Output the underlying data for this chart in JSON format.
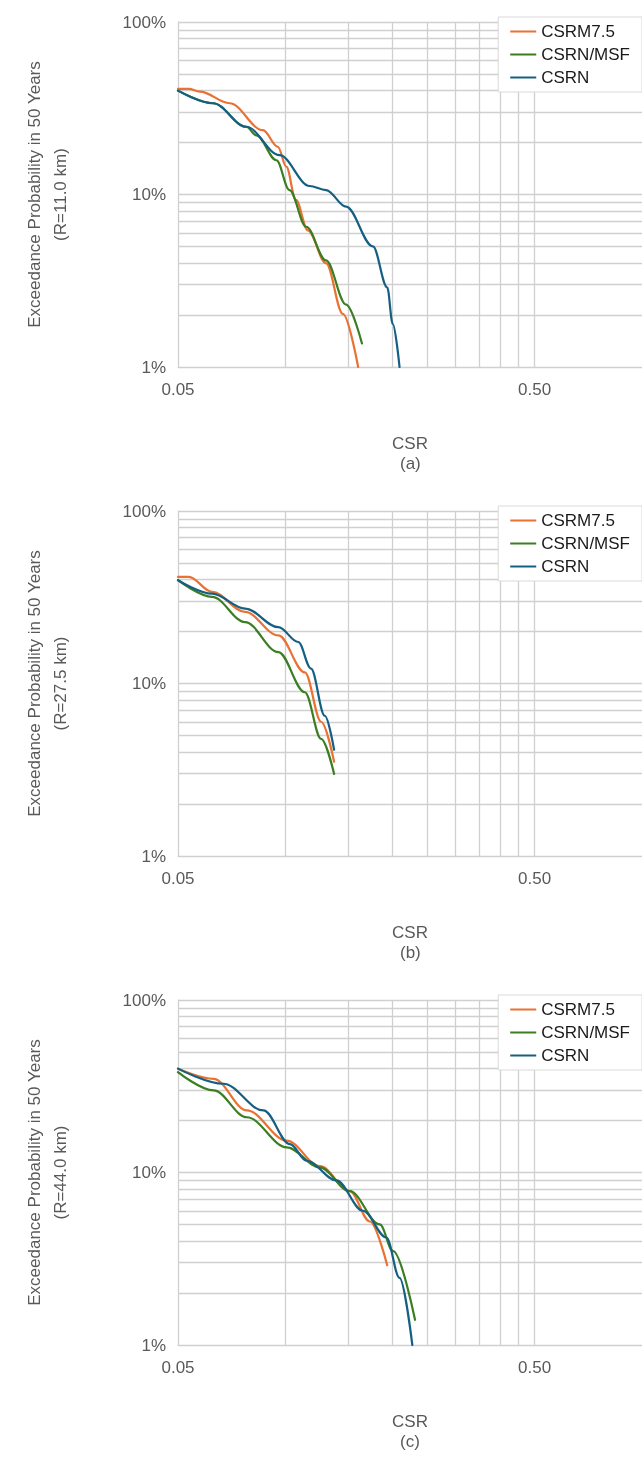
{
  "chart_data": [
    {
      "type": "line",
      "xlabel": "CSR",
      "ylabel": "Exceedance Probability in 50 Years\n(R=11.0 km)",
      "annotations": [
        "(a)"
      ],
      "log": "xy",
      "grid": true,
      "legend": "top right",
      "marker": "none",
      "xlim": [
        0.05,
        1
      ],
      "xticks": [
        {
          "value": 0.05,
          "label": "0.05"
        },
        {
          "value": 0.1,
          "label": null
        },
        {
          "value": 0.15,
          "label": null
        },
        {
          "value": 0.2,
          "label": null
        },
        {
          "value": 0.25,
          "label": null
        },
        {
          "value": 0.3,
          "label": null
        },
        {
          "value": 0.35,
          "label": null
        },
        {
          "value": 0.4,
          "label": null
        },
        {
          "value": 0.45,
          "label": null
        },
        {
          "value": 0.5,
          "label": "0.50"
        }
      ],
      "ylim": [
        1,
        100
      ],
      "yticks": [
        {
          "value": 1,
          "label": "1%"
        },
        {
          "value": 2,
          "label": null
        },
        {
          "value": 3,
          "label": null
        },
        {
          "value": 4,
          "label": null
        },
        {
          "value": 5,
          "label": null
        },
        {
          "value": 6,
          "label": null
        },
        {
          "value": 7,
          "label": null
        },
        {
          "value": 8,
          "label": null
        },
        {
          "value": 9,
          "label": null
        },
        {
          "value": 10,
          "label": "10%"
        },
        {
          "value": 20,
          "label": null
        },
        {
          "value": 30,
          "label": null
        },
        {
          "value": 40,
          "label": null
        },
        {
          "value": 50,
          "label": null
        },
        {
          "value": 60,
          "label": null
        },
        {
          "value": 70,
          "label": null
        },
        {
          "value": 80,
          "label": null
        },
        {
          "value": 90,
          "label": null
        },
        {
          "value": 100,
          "label": "100%"
        }
      ],
      "series": [
        {
          "name": "CSRM7.5",
          "color": "#e97132",
          "x": [
            0.05,
            0.0536,
            0.0576,
            0.0698,
            0.0865,
            0.0953,
            0.1006,
            0.107,
            0.1156,
            0.13,
            0.145,
            0.16
          ],
          "values": [
            41,
            41,
            39.5,
            33.8,
            23.6,
            18.9,
            14.5,
            9.3,
            6.2,
            4.0,
            2.03,
            1
          ]
        },
        {
          "name": "CSRN/MSF",
          "color": "#3a7d22",
          "x": [
            0.05,
            0.0627,
            0.0777,
            0.083,
            0.0944,
            0.1027,
            0.1144,
            0.13,
            0.148,
            0.164
          ],
          "values": [
            40,
            33.8,
            24.7,
            22,
            15.8,
            10.6,
            6.5,
            4.15,
            2.3,
            1.37
          ]
        },
        {
          "name": "CSRN",
          "color": "#156082",
          "x": [
            0.05,
            0.0627,
            0.0777,
            0.0963,
            0.117,
            0.13,
            0.148,
            0.176,
            0.193,
            0.2,
            0.209
          ],
          "values": [
            40,
            33.8,
            24.7,
            16.9,
            11.2,
            10.6,
            8.5,
            5.0,
            2.9,
            1.78,
            1
          ]
        }
      ]
    },
    {
      "type": "line",
      "xlabel": "CSR",
      "ylabel": "Exceedance Probability in 50 Years\n(R=27.5 km)",
      "annotations": [
        "(b)"
      ],
      "log": "xy",
      "grid": true,
      "legend": "top right",
      "marker": "none",
      "xlim": [
        0.05,
        1
      ],
      "xticks": [
        {
          "value": 0.05,
          "label": "0.05"
        },
        {
          "value": 0.1,
          "label": null
        },
        {
          "value": 0.15,
          "label": null
        },
        {
          "value": 0.2,
          "label": null
        },
        {
          "value": 0.25,
          "label": null
        },
        {
          "value": 0.3,
          "label": null
        },
        {
          "value": 0.35,
          "label": null
        },
        {
          "value": 0.4,
          "label": null
        },
        {
          "value": 0.45,
          "label": null
        },
        {
          "value": 0.5,
          "label": "0.50"
        }
      ],
      "ylim": [
        1,
        100
      ],
      "yticks": [
        {
          "value": 1,
          "label": "1%"
        },
        {
          "value": 2,
          "label": null
        },
        {
          "value": 3,
          "label": null
        },
        {
          "value": 4,
          "label": null
        },
        {
          "value": 5,
          "label": null
        },
        {
          "value": 6,
          "label": null
        },
        {
          "value": 7,
          "label": null
        },
        {
          "value": 8,
          "label": null
        },
        {
          "value": 9,
          "label": null
        },
        {
          "value": 10,
          "label": "10%"
        },
        {
          "value": 20,
          "label": null
        },
        {
          "value": 30,
          "label": null
        },
        {
          "value": 40,
          "label": null
        },
        {
          "value": 50,
          "label": null
        },
        {
          "value": 60,
          "label": null
        },
        {
          "value": 70,
          "label": null
        },
        {
          "value": 80,
          "label": null
        },
        {
          "value": 90,
          "label": null
        },
        {
          "value": 100,
          "label": "100%"
        }
      ],
      "series": [
        {
          "name": "CSRM7.5",
          "color": "#e97132",
          "x": [
            0.05,
            0.0536,
            0.0623,
            0.0771,
            0.0956,
            0.1134,
            0.126,
            0.137
          ],
          "values": [
            41.5,
            41.5,
            34,
            26,
            19,
            11.6,
            6.0,
            3.52
          ]
        },
        {
          "name": "CSRN/MSF",
          "color": "#3a7d22",
          "x": [
            0.05,
            0.0623,
            0.0771,
            0.0956,
            0.1134,
            0.126,
            0.137
          ],
          "values": [
            39.7,
            31.8,
            22.7,
            15.2,
            8.9,
            4.77,
            2.99
          ]
        },
        {
          "name": "CSRN",
          "color": "#156082",
          "x": [
            0.05,
            0.0623,
            0.0771,
            0.0956,
            0.1087,
            0.118,
            0.129,
            0.137
          ],
          "values": [
            39.7,
            33.2,
            27.2,
            21.2,
            17.4,
            12.2,
            6.5,
            4.13
          ]
        }
      ]
    },
    {
      "type": "line",
      "xlabel": "CSR",
      "ylabel": "Exceedance Probability in 50 Years\n(R=44.0 km)",
      "annotations": [
        "(c)"
      ],
      "log": "xy",
      "grid": true,
      "legend": "top right",
      "marker": "none",
      "xlim": [
        0.05,
        1
      ],
      "xticks": [
        {
          "value": 0.05,
          "label": "0.05"
        },
        {
          "value": 0.1,
          "label": null
        },
        {
          "value": 0.15,
          "label": null
        },
        {
          "value": 0.2,
          "label": null
        },
        {
          "value": 0.25,
          "label": null
        },
        {
          "value": 0.3,
          "label": null
        },
        {
          "value": 0.35,
          "label": null
        },
        {
          "value": 0.4,
          "label": null
        },
        {
          "value": 0.45,
          "label": null
        },
        {
          "value": 0.5,
          "label": "0.50"
        }
      ],
      "ylim": [
        1,
        100
      ],
      "yticks": [
        {
          "value": 1,
          "label": "1%"
        },
        {
          "value": 2,
          "label": null
        },
        {
          "value": 3,
          "label": null
        },
        {
          "value": 4,
          "label": null
        },
        {
          "value": 5,
          "label": null
        },
        {
          "value": 6,
          "label": null
        },
        {
          "value": 7,
          "label": null
        },
        {
          "value": 8,
          "label": null
        },
        {
          "value": 9,
          "label": null
        },
        {
          "value": 10,
          "label": "10%"
        },
        {
          "value": 20,
          "label": null
        },
        {
          "value": 30,
          "label": null
        },
        {
          "value": 40,
          "label": null
        },
        {
          "value": 50,
          "label": null
        },
        {
          "value": 60,
          "label": null
        },
        {
          "value": 70,
          "label": null
        },
        {
          "value": 80,
          "label": null
        },
        {
          "value": 90,
          "label": null
        },
        {
          "value": 100,
          "label": "100%"
        }
      ],
      "series": [
        {
          "name": "CSRM7.5",
          "color": "#e97132",
          "x": [
            0.05,
            0.0629,
            0.078,
            0.1009,
            0.125,
            0.1516,
            0.1725,
            0.193
          ],
          "values": [
            40,
            34.9,
            22.9,
            15.3,
            10.9,
            7.8,
            5.2,
            2.9
          ]
        },
        {
          "name": "CSRN/MSF",
          "color": "#3a7d22",
          "x": [
            0.05,
            0.0629,
            0.078,
            0.1009,
            0.125,
            0.1516,
            0.184,
            0.2005,
            0.231
          ],
          "values": [
            38.2,
            29.9,
            20.9,
            14.0,
            10.7,
            7.8,
            5.0,
            3.5,
            1.4
          ]
        },
        {
          "name": "CSRN",
          "color": "#156082",
          "x": [
            0.05,
            0.067,
            0.0868,
            0.103,
            0.1147,
            0.139,
            0.165,
            0.192,
            0.209,
            0.227
          ],
          "values": [
            40,
            32.7,
            22.9,
            14.6,
            11.7,
            9.0,
            6.0,
            4.2,
            2.45,
            1
          ]
        }
      ]
    }
  ]
}
